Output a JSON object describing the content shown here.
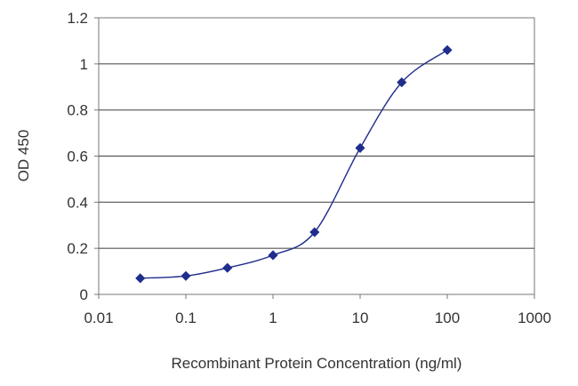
{
  "chart_data": {
    "type": "line",
    "xlabel": "Recombinant Protein Concentration (ng/ml)",
    "ylabel": "OD 450",
    "x_scale": "log",
    "xlim": [
      0.01,
      1000
    ],
    "ylim": [
      0,
      1.2
    ],
    "x_ticks": [
      "0.01",
      "0.1",
      "1",
      "10",
      "100",
      "1000"
    ],
    "y_ticks": [
      "0",
      "0.2",
      "0.4",
      "0.6",
      "0.8",
      "1",
      "1.2"
    ],
    "grid": "horizontal",
    "series": [
      {
        "color": "#1f2d8c",
        "marker": "diamond",
        "points": [
          {
            "x": 0.03,
            "y": 0.07
          },
          {
            "x": 0.1,
            "y": 0.08
          },
          {
            "x": 0.3,
            "y": 0.115
          },
          {
            "x": 1,
            "y": 0.17
          },
          {
            "x": 3,
            "y": 0.27
          },
          {
            "x": 10,
            "y": 0.635
          },
          {
            "x": 30,
            "y": 0.92
          },
          {
            "x": 100,
            "y": 1.06
          }
        ]
      }
    ]
  }
}
